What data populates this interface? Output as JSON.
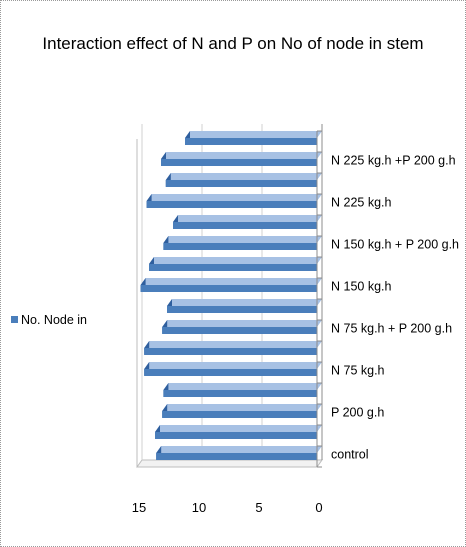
{
  "chart_data": {
    "type": "bar",
    "orientation": "horizontal",
    "x_reversed": true,
    "title": "Interaction effect of N and P on No of node in stem",
    "xlim": [
      0,
      15
    ],
    "x_ticks": [
      15,
      10,
      5,
      0
    ],
    "category_labels": [
      "control",
      "P 200 g.h",
      "N 75 kg.h",
      "N 75 kg.h + P 200 g.h",
      "N 150 kg.h",
      "N 150 kg.h + P 200 g.h",
      "N 225 kg.h",
      "N 225 kg.h +P 200 g.h"
    ],
    "bars_per_label": 2,
    "series": [
      {
        "name": "No. Node in",
        "color": "#4a7ebb",
        "values": [
          13.4,
          13.5,
          12.9,
          12.8,
          14.4,
          14.4,
          12.9,
          12.5,
          14.7,
          14.0,
          12.8,
          12.0,
          14.2,
          12.6,
          13.0,
          11.0
        ]
      }
    ],
    "legend_position": "left",
    "grid": true
  }
}
